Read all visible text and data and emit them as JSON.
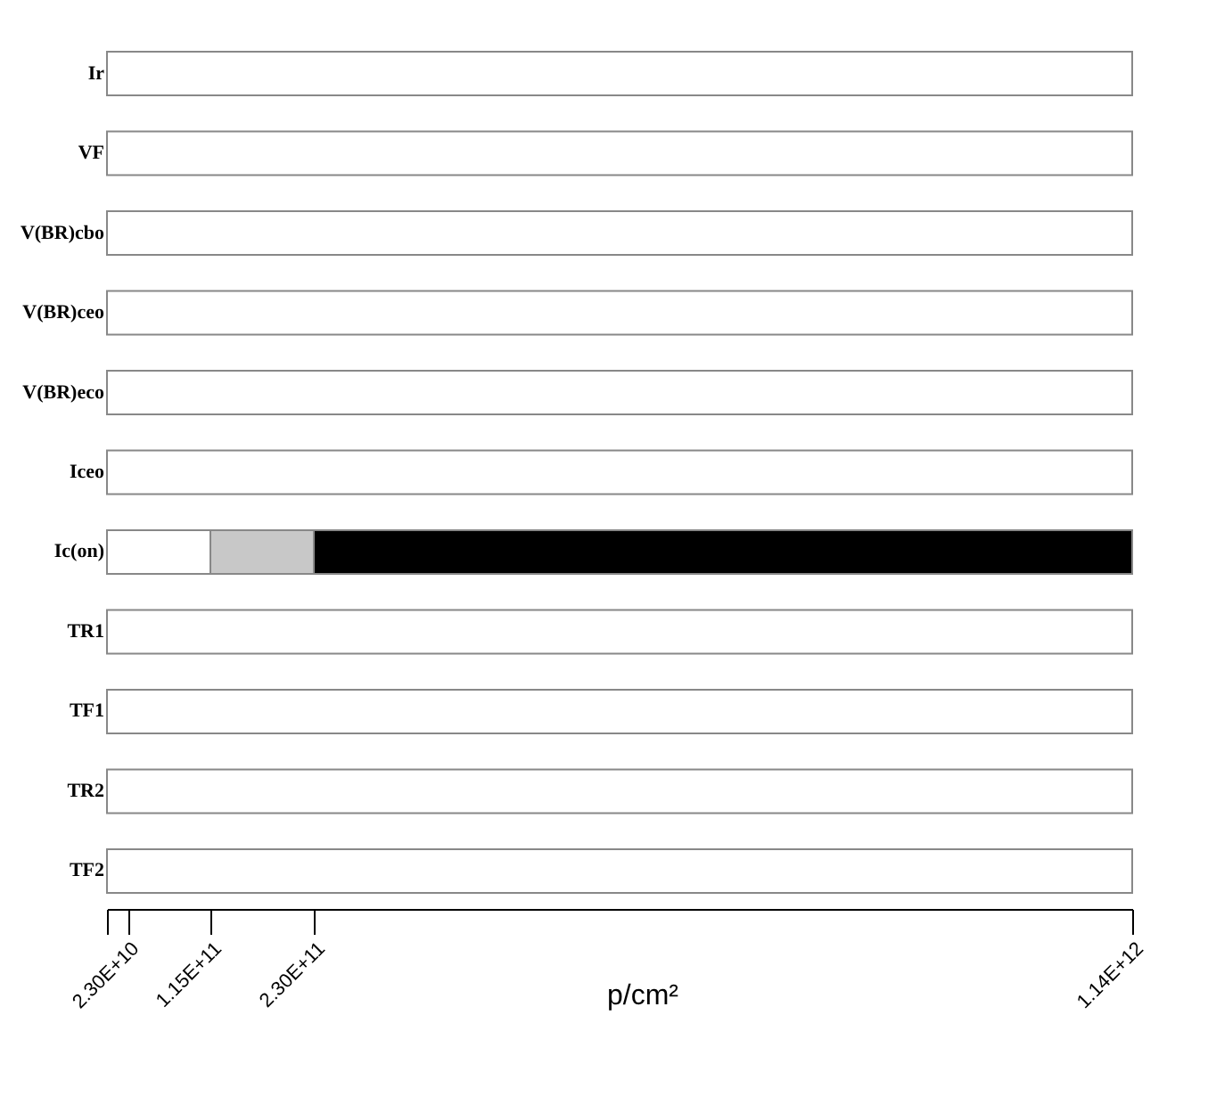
{
  "chart_data": {
    "type": "bar",
    "orientation": "horizontal",
    "stacked": true,
    "xlabel": "p/cm²",
    "categories": [
      "Ir",
      "VF",
      "V(BR)cbo",
      "V(BR)ceo",
      "V(BR)eco",
      "Iceo",
      "Ic(on)",
      "TR1",
      "TF1",
      "TR2",
      "TF2"
    ],
    "series": [
      {
        "color": "#ffffff",
        "values": [
          1140000000000.0,
          1140000000000.0,
          1140000000000.0,
          1140000000000.0,
          1140000000000.0,
          1140000000000.0,
          115000000000.0,
          1140000000000.0,
          1140000000000.0,
          1140000000000.0,
          1140000000000.0
        ]
      },
      {
        "color": "#c8c8c8",
        "values": [
          null,
          null,
          null,
          null,
          null,
          null,
          115000000000.0,
          null,
          null,
          null,
          null
        ]
      },
      {
        "color": "#000000",
        "values": [
          null,
          null,
          null,
          null,
          null,
          null,
          910000000000.0,
          null,
          null,
          null,
          null
        ]
      }
    ],
    "xlim": [
      0,
      1140000000000.0
    ],
    "xticks": [
      {
        "value": 0,
        "label": null
      },
      {
        "value": 23000000000.0,
        "label": "2.30E+10"
      },
      {
        "value": 115000000000.0,
        "label": "1.15E+11"
      },
      {
        "value": 230000000000.0,
        "label": "2.30E+11"
      },
      {
        "value": 1140000000000.0,
        "label": "1.14E+12"
      }
    ],
    "grid": false
  }
}
